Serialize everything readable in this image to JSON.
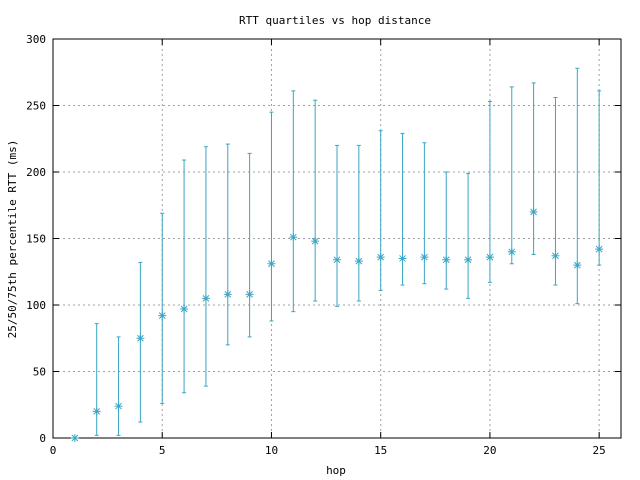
{
  "chart_data": {
    "type": "scatter",
    "title": "RTT quartiles vs hop distance",
    "xlabel": "hop",
    "ylabel": "25/50/75th percentile RTT (ms)",
    "xlim": [
      0,
      26
    ],
    "ylim": [
      0,
      300
    ],
    "xticks": [
      0,
      5,
      10,
      15,
      20,
      25
    ],
    "yticks": [
      0,
      50,
      100,
      150,
      200,
      250,
      300
    ],
    "grid": true,
    "legend": "none",
    "series_color": "#3aa5c4",
    "marker": "asterisk",
    "points": [
      {
        "hop": 1,
        "p25": 0,
        "median": 0,
        "p75": 0
      },
      {
        "hop": 2,
        "p25": 2,
        "median": 20,
        "p75": 86
      },
      {
        "hop": 3,
        "p25": 2,
        "median": 24,
        "p75": 76
      },
      {
        "hop": 4,
        "p25": 12,
        "median": 75,
        "p75": 132
      },
      {
        "hop": 5,
        "p25": 26,
        "median": 92,
        "p75": 169
      },
      {
        "hop": 6,
        "p25": 34,
        "median": 97,
        "p75": 209
      },
      {
        "hop": 7,
        "p25": 39,
        "median": 105,
        "p75": 219
      },
      {
        "hop": 8,
        "p25": 70,
        "median": 108,
        "p75": 221
      },
      {
        "hop": 9,
        "p25": 76,
        "median": 108,
        "p75": 214
      },
      {
        "hop": 10,
        "p25": 88,
        "median": 131,
        "p75": 245
      },
      {
        "hop": 11,
        "p25": 95,
        "median": 151,
        "p75": 261
      },
      {
        "hop": 12,
        "p25": 103,
        "median": 148,
        "p75": 254
      },
      {
        "hop": 13,
        "p25": 99,
        "median": 134,
        "p75": 220
      },
      {
        "hop": 14,
        "p25": 103,
        "median": 133,
        "p75": 220
      },
      {
        "hop": 15,
        "p25": 111,
        "median": 136,
        "p75": 231
      },
      {
        "hop": 16,
        "p25": 115,
        "median": 135,
        "p75": 229
      },
      {
        "hop": 17,
        "p25": 116,
        "median": 136,
        "p75": 222
      },
      {
        "hop": 18,
        "p25": 112,
        "median": 134,
        "p75": 200
      },
      {
        "hop": 19,
        "p25": 105,
        "median": 134,
        "p75": 199
      },
      {
        "hop": 20,
        "p25": 117,
        "median": 136,
        "p75": 253
      },
      {
        "hop": 21,
        "p25": 131,
        "median": 140,
        "p75": 264
      },
      {
        "hop": 22,
        "p25": 138,
        "median": 170,
        "p75": 267
      },
      {
        "hop": 23,
        "p25": 115,
        "median": 137,
        "p75": 256
      },
      {
        "hop": 24,
        "p25": 101,
        "median": 130,
        "p75": 278
      },
      {
        "hop": 25,
        "p25": 130,
        "median": 142,
        "p75": 261
      }
    ]
  }
}
